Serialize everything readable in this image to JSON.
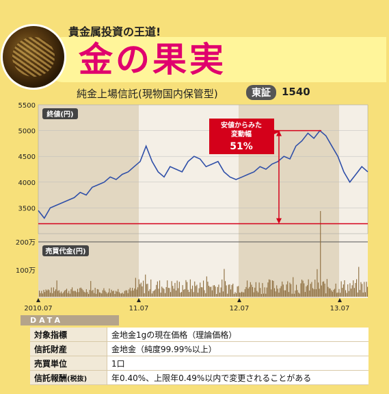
{
  "header": {
    "kicker": "貴金属投資の王道!",
    "title": "金の果実",
    "subtitle": "純金上場信託(現物国内保管型)",
    "exchange": "東証",
    "code": "1540"
  },
  "chart_data": [
    {
      "type": "line",
      "title": "終値(円)",
      "ylim": [
        3000,
        5500
      ],
      "yticks": [
        3500,
        4000,
        4500,
        5000,
        5500
      ],
      "xticks": [
        "2010.07",
        "11.07",
        "12.07",
        "13.07"
      ],
      "series": [
        {
          "values": [
            3450,
            3300,
            3500,
            3550,
            3600,
            3650,
            3700,
            3800,
            3750,
            3900,
            3950,
            4000,
            4100,
            4050,
            4150,
            4200,
            4300,
            4400,
            4700,
            4400,
            4200,
            4100,
            4300,
            4250,
            4200,
            4400,
            4500,
            4450,
            4300,
            4350,
            4400,
            4200,
            4100,
            4050,
            4100,
            4150,
            4200,
            4300,
            4250,
            4350,
            4400,
            4500,
            4450,
            4700,
            4800,
            4950,
            4850,
            5000,
            4900,
            4700,
            4500,
            4200,
            4000,
            4150,
            4300,
            4200
          ]
        }
      ],
      "annotation": {
        "label": "安値からみた変動幅",
        "value": "51%"
      }
    },
    {
      "type": "bar",
      "title": "売買代金(円)",
      "yticks": [
        "100万",
        "200万"
      ]
    }
  ],
  "data_table": {
    "tab": "DATA",
    "rows": [
      {
        "key": "対象指標",
        "value": "金地金1gの現在価格（理論価格）"
      },
      {
        "key": "信託財産",
        "value": "金地金（純度99.99%以上）"
      },
      {
        "key": "売買単位",
        "value": "1口"
      },
      {
        "key": "信託報酬",
        "key_note": "(税抜)",
        "value": "年0.40%、上限年0.49%以内で変更されることがある"
      }
    ]
  }
}
